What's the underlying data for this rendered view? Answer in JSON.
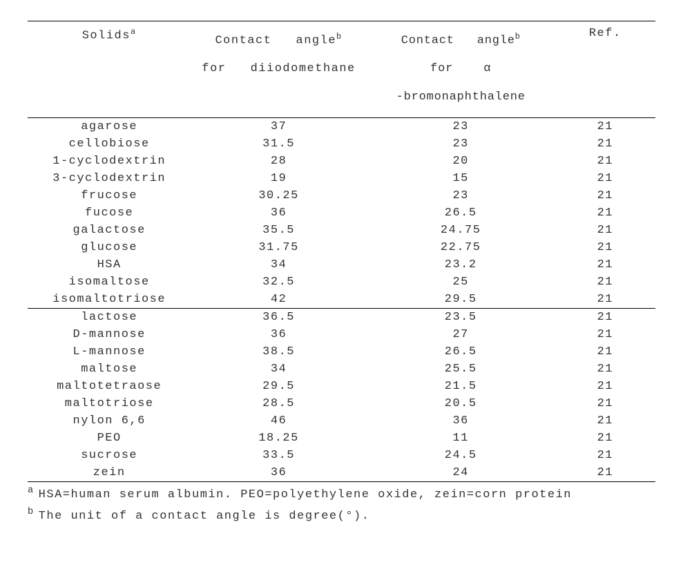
{
  "headers": {
    "solids_label": "Solids",
    "solids_sup": "a",
    "contact_label": "Contact",
    "angle_label": "angle",
    "angle_sup": "b",
    "for_label": "for",
    "liquid1": "diiodomethane",
    "liquid2_prefix": "α",
    "liquid2_main": "-bromonaphthalene",
    "ref_label": "Ref."
  },
  "rows_section1": [
    {
      "name": "agarose",
      "c1": "37",
      "c2": "23",
      "ref": "21"
    },
    {
      "name": "cellobiose",
      "c1": "31.5",
      "c2": "23",
      "ref": "21"
    },
    {
      "name": "1-cyclodextrin",
      "c1": "28",
      "c2": "20",
      "ref": "21"
    },
    {
      "name": "3-cyclodextrin",
      "c1": "19",
      "c2": "15",
      "ref": "21"
    },
    {
      "name": "frucose",
      "c1": "30.25",
      "c2": "23",
      "ref": "21"
    },
    {
      "name": "fucose",
      "c1": "36",
      "c2": "26.5",
      "ref": "21"
    },
    {
      "name": "galactose",
      "c1": "35.5",
      "c2": "24.75",
      "ref": "21"
    },
    {
      "name": "glucose",
      "c1": "31.75",
      "c2": "22.75",
      "ref": "21"
    },
    {
      "name": "HSA",
      "c1": "34",
      "c2": "23.2",
      "ref": "21"
    },
    {
      "name": "isomaltose",
      "c1": "32.5",
      "c2": "25",
      "ref": "21"
    },
    {
      "name": "isomaltotriose",
      "c1": "42",
      "c2": "29.5",
      "ref": "21"
    }
  ],
  "rows_section2": [
    {
      "name": "lactose",
      "c1": "36.5",
      "c2": "23.5",
      "ref": "21"
    },
    {
      "name": "D-mannose",
      "c1": "36",
      "c2": "27",
      "ref": "21"
    },
    {
      "name": "L-mannose",
      "c1": "38.5",
      "c2": "26.5",
      "ref": "21"
    },
    {
      "name": "maltose",
      "c1": "34",
      "c2": "25.5",
      "ref": "21"
    },
    {
      "name": "maltotetraose",
      "c1": "29.5",
      "c2": "21.5",
      "ref": "21"
    },
    {
      "name": "maltotriose",
      "c1": "28.5",
      "c2": "20.5",
      "ref": "21"
    },
    {
      "name": "nylon 6,6",
      "c1": "46",
      "c2": "36",
      "ref": "21"
    },
    {
      "name": "PEO",
      "c1": "18.25",
      "c2": "11",
      "ref": "21"
    },
    {
      "name": "sucrose",
      "c1": "33.5",
      "c2": "24.5",
      "ref": "21"
    },
    {
      "name": "zein",
      "c1": "36",
      "c2": "24",
      "ref": "21"
    }
  ],
  "footnotes": {
    "a_marker": "a",
    "a_text": "HSA=human serum albumin. PEO=polyethylene oxide, zein=corn protein",
    "b_marker": "b",
    "b_text": "The unit of a contact angle is degree(°)."
  }
}
